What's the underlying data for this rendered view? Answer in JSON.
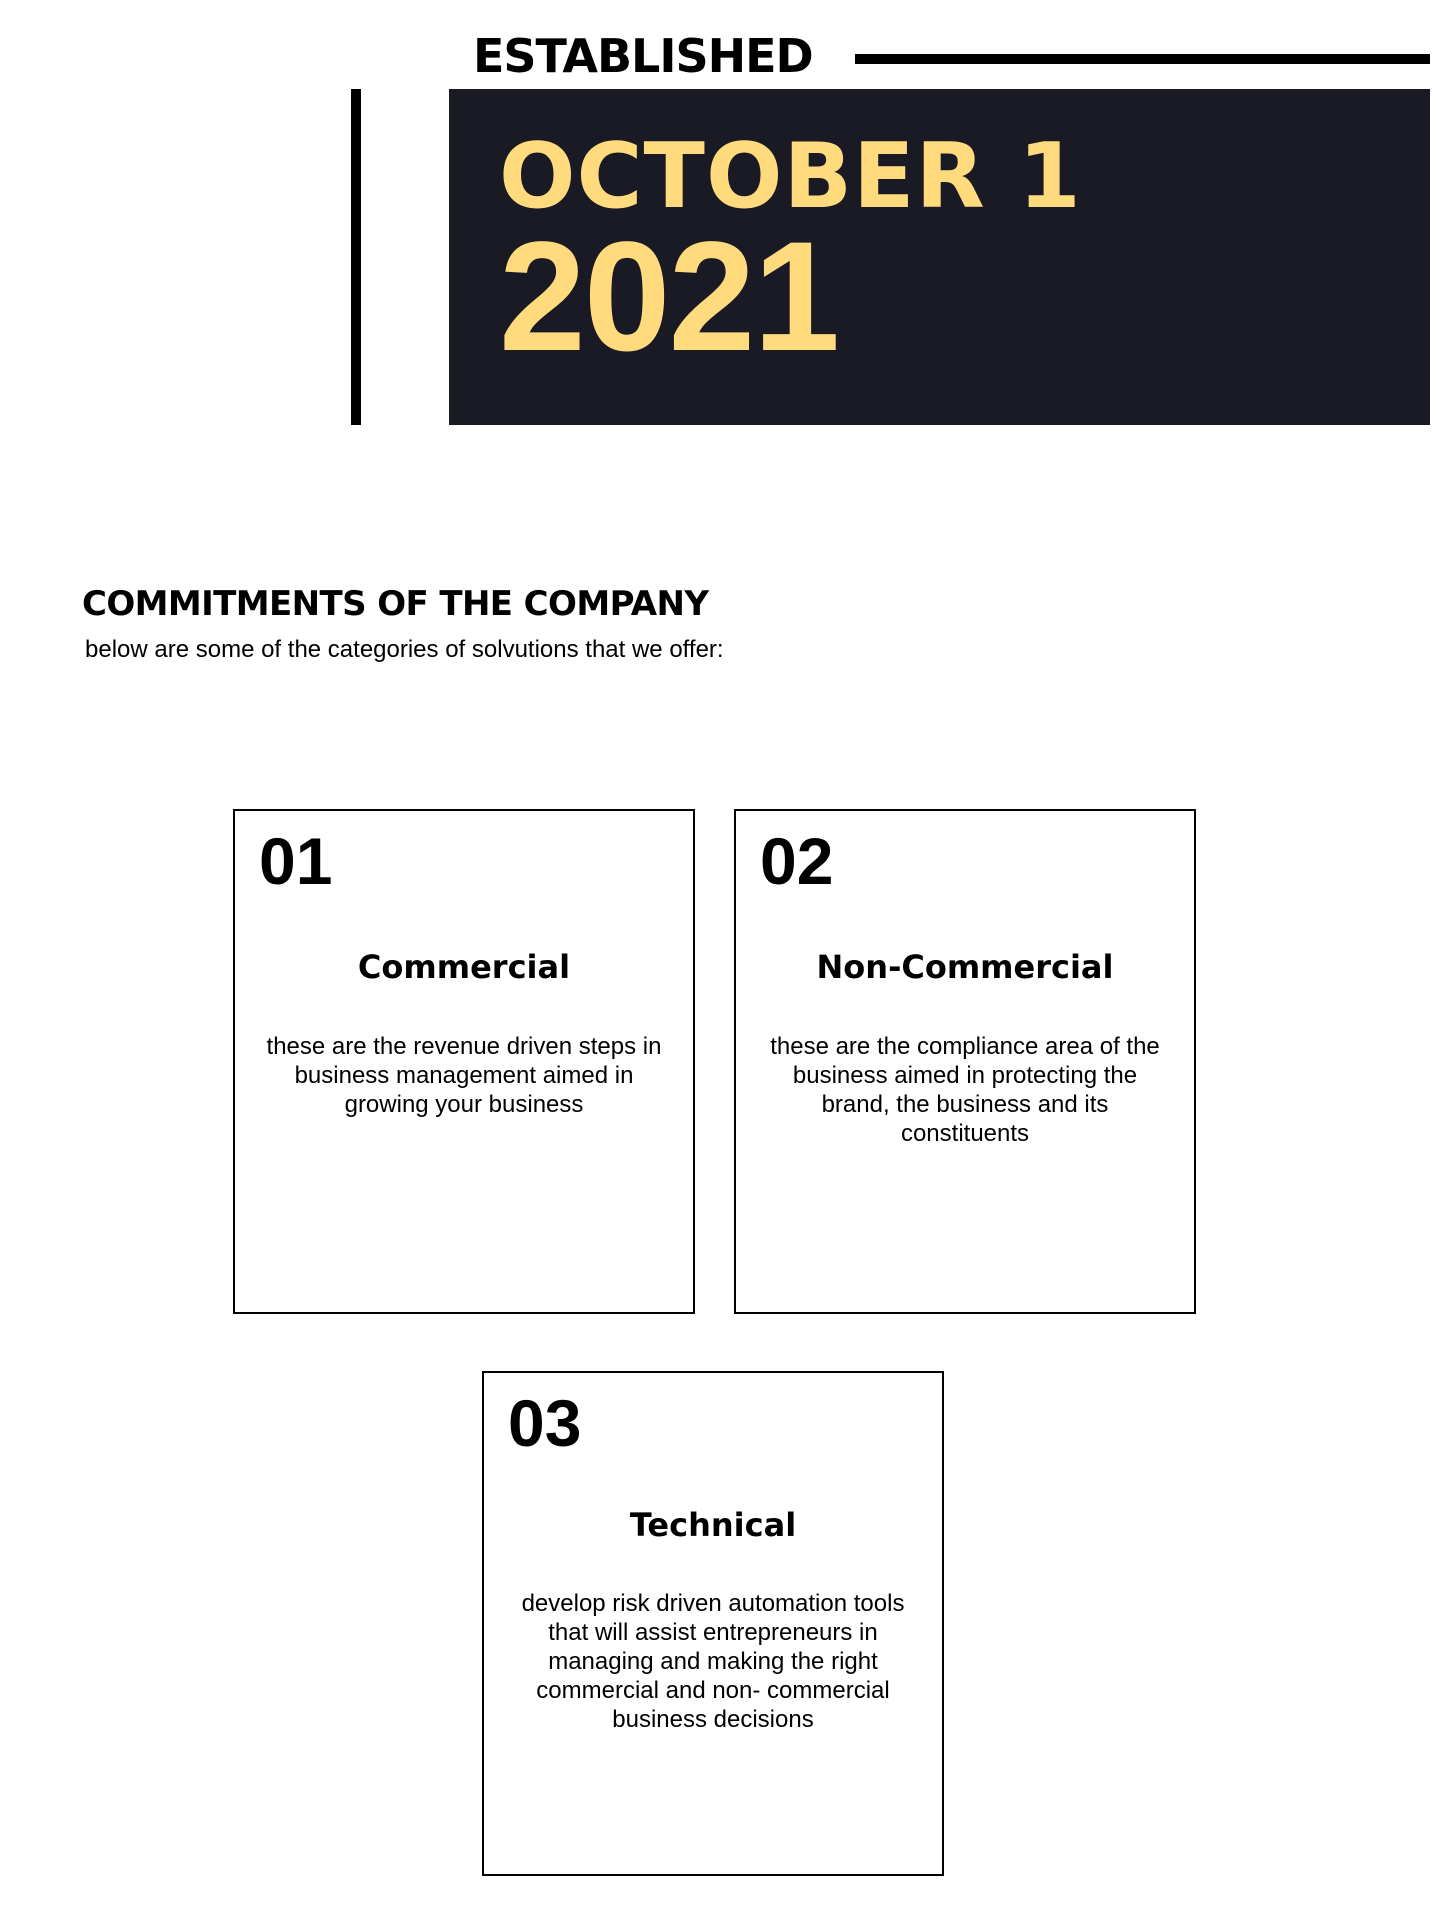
{
  "header": {
    "established_label": "ESTABLISHED",
    "date_month_day": "OCTOBER 1",
    "date_year": "2021",
    "accent_color": "#ffdb7e",
    "panel_color": "#1a1a24"
  },
  "commitments": {
    "title": "COMMITMENTS OF THE COMPANY",
    "subtitle": "below are some of the categories of solvutions that we offer:",
    "cards": [
      {
        "number": "01",
        "heading": "Commercial",
        "text": "these are the revenue driven steps in business management aimed in growing your business"
      },
      {
        "number": "02",
        "heading": "Non-Commercial",
        "text": "these are the compliance area of the business aimed in protecting the brand, the business and its constituents"
      },
      {
        "number": "03",
        "heading": "Technical",
        "text": "develop risk driven automation tools that will assist entrepreneurs in managing and making the right commercial and non- commercial business decisions"
      }
    ]
  }
}
